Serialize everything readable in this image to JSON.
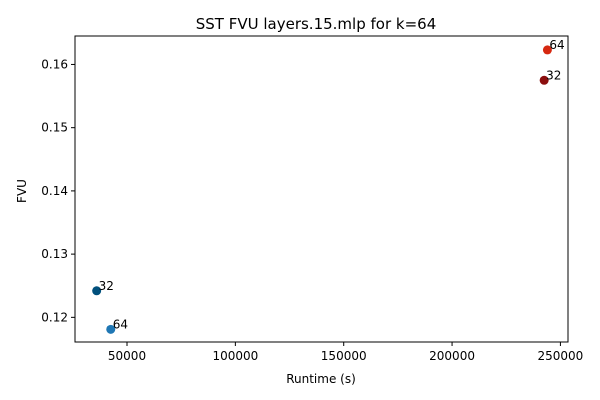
{
  "chart_data": {
    "type": "scatter",
    "title": "SST FVU layers.15.mlp for k=64",
    "xlabel": "Runtime (s)",
    "ylabel": "FVU",
    "xlim": [
      26000,
      253500
    ],
    "ylim": [
      0.1161,
      0.1645
    ],
    "x_ticks": [
      50000,
      100000,
      150000,
      200000,
      250000
    ],
    "x_tick_labels": [
      "50000",
      "100000",
      "150000",
      "200000",
      "250000"
    ],
    "y_ticks": [
      0.12,
      0.13,
      0.14,
      0.15,
      0.16
    ],
    "y_tick_labels": [
      "0.12",
      "0.13",
      "0.14",
      "0.15",
      "0.16"
    ],
    "grid": false,
    "legend": "none",
    "points": [
      {
        "x": 36000,
        "y": 0.1242,
        "label": "32",
        "color": "#00507c"
      },
      {
        "x": 42500,
        "y": 0.1181,
        "label": "64",
        "color": "#1f77b4"
      },
      {
        "x": 242500,
        "y": 0.1575,
        "label": "32",
        "color": "#8b0e0e"
      },
      {
        "x": 244000,
        "y": 0.1623,
        "label": "64",
        "color": "#d62810"
      }
    ]
  }
}
